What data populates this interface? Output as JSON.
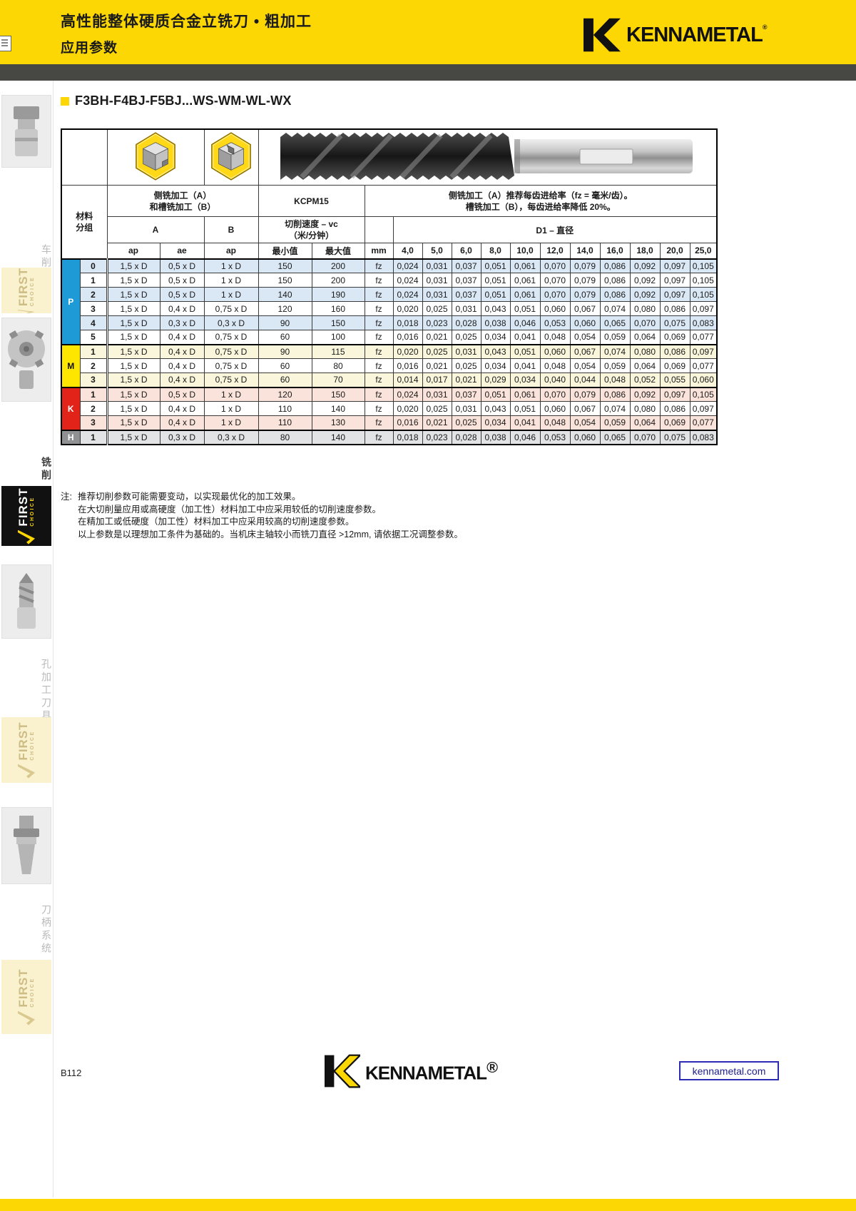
{
  "colors": {
    "brand_yellow": "#FCD703",
    "dark_bar": "#474744",
    "p_blue": "#1E9BD7",
    "m_yellow": "#FFE600",
    "k_red": "#E2231A",
    "h_gray": "#8F9193"
  },
  "icons": {
    "document_icon": "page-sheet",
    "brand_mark": "kennametal-k-flag",
    "side_milling_icon": "hexagon-cube-step",
    "slot_milling_icon": "hexagon-cube-slot",
    "endmill_photo": "roughing-end-mill",
    "first_choice_check": "checkmark"
  },
  "header": {
    "title_line1": "高性能整体硬质合金立铣刀 • 粗加工",
    "title_line2": "应用参数",
    "brand": "KENNAMETAL",
    "brand_reg": "®"
  },
  "sidebar": {
    "sections": [
      {
        "label": "车削",
        "active": false
      },
      {
        "label": "铣削",
        "active": true
      },
      {
        "label": "孔加工刀具",
        "active": false
      },
      {
        "label": "刀柄系统",
        "active": false
      }
    ],
    "first_choice": {
      "line1": "FIRST",
      "line2": "CHOICE"
    }
  },
  "section_title": "F3BH-F4BJ-F5BJ...WS-WM-WL-WX",
  "table": {
    "milling_header_line1": "侧铣加工（A）",
    "milling_header_line2": "和槽铣加工（B）",
    "grade": "KCPM15",
    "feed_header_line1": "侧铣加工（A）推荐每齿进给率（fz = 毫米/齿）。",
    "feed_header_line2": "槽铣加工（B），每齿进给率降低 20%。",
    "col_a": "A",
    "col_b": "B",
    "vc_header_line1": "切削速度 – vc",
    "vc_header_line2": "（米/分钟）",
    "d1_header": "D1 – 直径",
    "material_header_line1": "材料",
    "material_header_line2": "分组",
    "subheaders": [
      "ap",
      "ae",
      "ap",
      "最小值",
      "最大值",
      "mm"
    ],
    "diameters": [
      "4,0",
      "5,0",
      "6,0",
      "8,0",
      "10,0",
      "12,0",
      "14,0",
      "16,0",
      "18,0",
      "20,0",
      "25,0"
    ],
    "groups": [
      {
        "letter": "P",
        "color": "#1E9BD7",
        "letter_color": "#ffffff",
        "tint": "#DAE8F5",
        "rows": [
          {
            "idx": "0",
            "ap": "1,5 x D",
            "ae": "0,5 x D",
            "ap_b": "1 x D",
            "vc_min": "150",
            "vc_max": "200",
            "unit": "fz",
            "fz": [
              "0,024",
              "0,031",
              "0,037",
              "0,051",
              "0,061",
              "0,070",
              "0,079",
              "0,086",
              "0,092",
              "0,097",
              "0,105"
            ]
          },
          {
            "idx": "1",
            "ap": "1,5 x D",
            "ae": "0,5 x D",
            "ap_b": "1 x D",
            "vc_min": "150",
            "vc_max": "200",
            "unit": "fz",
            "fz": [
              "0,024",
              "0,031",
              "0,037",
              "0,051",
              "0,061",
              "0,070",
              "0,079",
              "0,086",
              "0,092",
              "0,097",
              "0,105"
            ]
          },
          {
            "idx": "2",
            "ap": "1,5 x D",
            "ae": "0,5 x D",
            "ap_b": "1 x D",
            "vc_min": "140",
            "vc_max": "190",
            "unit": "fz",
            "fz": [
              "0,024",
              "0,031",
              "0,037",
              "0,051",
              "0,061",
              "0,070",
              "0,079",
              "0,086",
              "0,092",
              "0,097",
              "0,105"
            ]
          },
          {
            "idx": "3",
            "ap": "1,5 x D",
            "ae": "0,4 x D",
            "ap_b": "0,75 x D",
            "vc_min": "120",
            "vc_max": "160",
            "unit": "fz",
            "fz": [
              "0,020",
              "0,025",
              "0,031",
              "0,043",
              "0,051",
              "0,060",
              "0,067",
              "0,074",
              "0,080",
              "0,086",
              "0,097"
            ]
          },
          {
            "idx": "4",
            "ap": "1,5 x D",
            "ae": "0,3 x D",
            "ap_b": "0,3 x D",
            "vc_min": "90",
            "vc_max": "150",
            "unit": "fz",
            "fz": [
              "0,018",
              "0,023",
              "0,028",
              "0,038",
              "0,046",
              "0,053",
              "0,060",
              "0,065",
              "0,070",
              "0,075",
              "0,083"
            ]
          },
          {
            "idx": "5",
            "ap": "1,5 x D",
            "ae": "0,4 x D",
            "ap_b": "0,75 x D",
            "vc_min": "60",
            "vc_max": "100",
            "unit": "fz",
            "fz": [
              "0,016",
              "0,021",
              "0,025",
              "0,034",
              "0,041",
              "0,048",
              "0,054",
              "0,059",
              "0,064",
              "0,069",
              "0,077"
            ]
          }
        ]
      },
      {
        "letter": "M",
        "color": "#FFE600",
        "letter_color": "#111111",
        "tint": "#FAF6DC",
        "rows": [
          {
            "idx": "1",
            "ap": "1,5 x D",
            "ae": "0,4 x D",
            "ap_b": "0,75 x D",
            "vc_min": "90",
            "vc_max": "115",
            "unit": "fz",
            "fz": [
              "0,020",
              "0,025",
              "0,031",
              "0,043",
              "0,051",
              "0,060",
              "0,067",
              "0,074",
              "0,080",
              "0,086",
              "0,097"
            ]
          },
          {
            "idx": "2",
            "ap": "1,5 x D",
            "ae": "0,4 x D",
            "ap_b": "0,75 x D",
            "vc_min": "60",
            "vc_max": "80",
            "unit": "fz",
            "fz": [
              "0,016",
              "0,021",
              "0,025",
              "0,034",
              "0,041",
              "0,048",
              "0,054",
              "0,059",
              "0,064",
              "0,069",
              "0,077"
            ]
          },
          {
            "idx": "3",
            "ap": "1,5 x D",
            "ae": "0,4 x D",
            "ap_b": "0,75 x D",
            "vc_min": "60",
            "vc_max": "70",
            "unit": "fz",
            "fz": [
              "0,014",
              "0,017",
              "0,021",
              "0,029",
              "0,034",
              "0,040",
              "0,044",
              "0,048",
              "0,052",
              "0,055",
              "0,060"
            ]
          }
        ]
      },
      {
        "letter": "K",
        "color": "#E2231A",
        "letter_color": "#ffffff",
        "tint": "#FAE3DA",
        "rows": [
          {
            "idx": "1",
            "ap": "1,5 x D",
            "ae": "0,5 x D",
            "ap_b": "1 x D",
            "vc_min": "120",
            "vc_max": "150",
            "unit": "fz",
            "fz": [
              "0,024",
              "0,031",
              "0,037",
              "0,051",
              "0,061",
              "0,070",
              "0,079",
              "0,086",
              "0,092",
              "0,097",
              "0,105"
            ]
          },
          {
            "idx": "2",
            "ap": "1,5 x D",
            "ae": "0,4 x D",
            "ap_b": "1 x D",
            "vc_min": "110",
            "vc_max": "140",
            "unit": "fz",
            "fz": [
              "0,020",
              "0,025",
              "0,031",
              "0,043",
              "0,051",
              "0,060",
              "0,067",
              "0,074",
              "0,080",
              "0,086",
              "0,097"
            ]
          },
          {
            "idx": "3",
            "ap": "1,5 x D",
            "ae": "0,4 x D",
            "ap_b": "1 x D",
            "vc_min": "110",
            "vc_max": "130",
            "unit": "fz",
            "fz": [
              "0,016",
              "0,021",
              "0,025",
              "0,034",
              "0,041",
              "0,048",
              "0,054",
              "0,059",
              "0,064",
              "0,069",
              "0,077"
            ]
          }
        ]
      },
      {
        "letter": "H",
        "color": "#8F9193",
        "letter_color": "#ffffff",
        "tint": "#E2E3E4",
        "rows": [
          {
            "idx": "1",
            "ap": "1,5 x D",
            "ae": "0,3 x D",
            "ap_b": "0,3 x D",
            "vc_min": "80",
            "vc_max": "140",
            "unit": "fz",
            "fz": [
              "0,018",
              "0,023",
              "0,028",
              "0,038",
              "0,046",
              "0,053",
              "0,060",
              "0,065",
              "0,070",
              "0,075",
              "0,083"
            ]
          }
        ]
      }
    ]
  },
  "notes": {
    "prefix": "注:",
    "lines": [
      "推荐切削参数可能需要变动，以实现最优化的加工效果。",
      "在大切削量应用或高硬度（加工性）材料加工中应采用较低的切削速度参数。",
      "在精加工或低硬度（加工性）材料加工中应采用较高的切削速度参数。",
      "以上参数是以理想加工条件为基础的。当机床主轴较小而铣刀直径 >12mm, 请依据工况调整参数。"
    ]
  },
  "footer": {
    "page_number": "B112",
    "brand": "KENNAMETAL",
    "brand_reg": "®",
    "website": "kennametal.com"
  }
}
